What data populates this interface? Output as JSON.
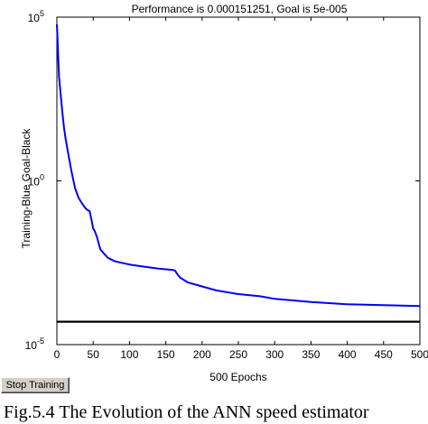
{
  "chart_data": {
    "type": "line",
    "title": "Performance is 0.000151251, Goal is 5e-005",
    "xlabel": "500 Epochs",
    "ylabel": "Training-Blue  Goal-Black",
    "xlim": [
      0,
      500
    ],
    "ylim": [
      1e-05,
      100000
    ],
    "yscale": "log",
    "x_ticks": [
      0,
      50,
      100,
      150,
      200,
      250,
      300,
      350,
      400,
      450,
      500
    ],
    "y_ticks": [
      {
        "value": 1e-05,
        "base": "10",
        "exp": "-5"
      },
      {
        "value": 1,
        "base": "10",
        "exp": "0"
      },
      {
        "value": 100000,
        "base": "10",
        "exp": "5"
      }
    ],
    "grid": false,
    "series": [
      {
        "color": "#0000ff",
        "x": [
          0,
          1,
          2,
          3,
          5,
          8,
          10,
          12,
          15,
          18,
          20,
          25,
          30,
          35,
          40,
          42,
          45,
          48,
          50,
          52,
          55,
          60,
          70,
          80,
          100,
          120,
          140,
          160,
          163,
          165,
          170,
          180,
          200,
          220,
          250,
          280,
          300,
          350,
          400,
          450,
          500
        ],
        "y": [
          60000,
          20000,
          5000,
          1500,
          500,
          100,
          40,
          20,
          8,
          3.5,
          2,
          0.6,
          0.3,
          0.2,
          0.14,
          0.13,
          0.12,
          0.06,
          0.035,
          0.03,
          0.02,
          0.008,
          0.0045,
          0.0035,
          0.0028,
          0.0024,
          0.0021,
          0.0019,
          0.0018,
          0.0015,
          0.0011,
          0.0008,
          0.0006,
          0.00045,
          0.00035,
          0.0003,
          0.00025,
          0.0002,
          0.00017,
          0.00016,
          0.000151251
        ]
      },
      {
        "color": "#000000",
        "x": [
          0,
          500
        ],
        "y": [
          5e-05,
          5e-05
        ]
      }
    ]
  },
  "controls": {
    "stop_training_label": "Stop Training"
  },
  "caption": "Fig.5.4 The Evolution of the ANN speed estimator"
}
